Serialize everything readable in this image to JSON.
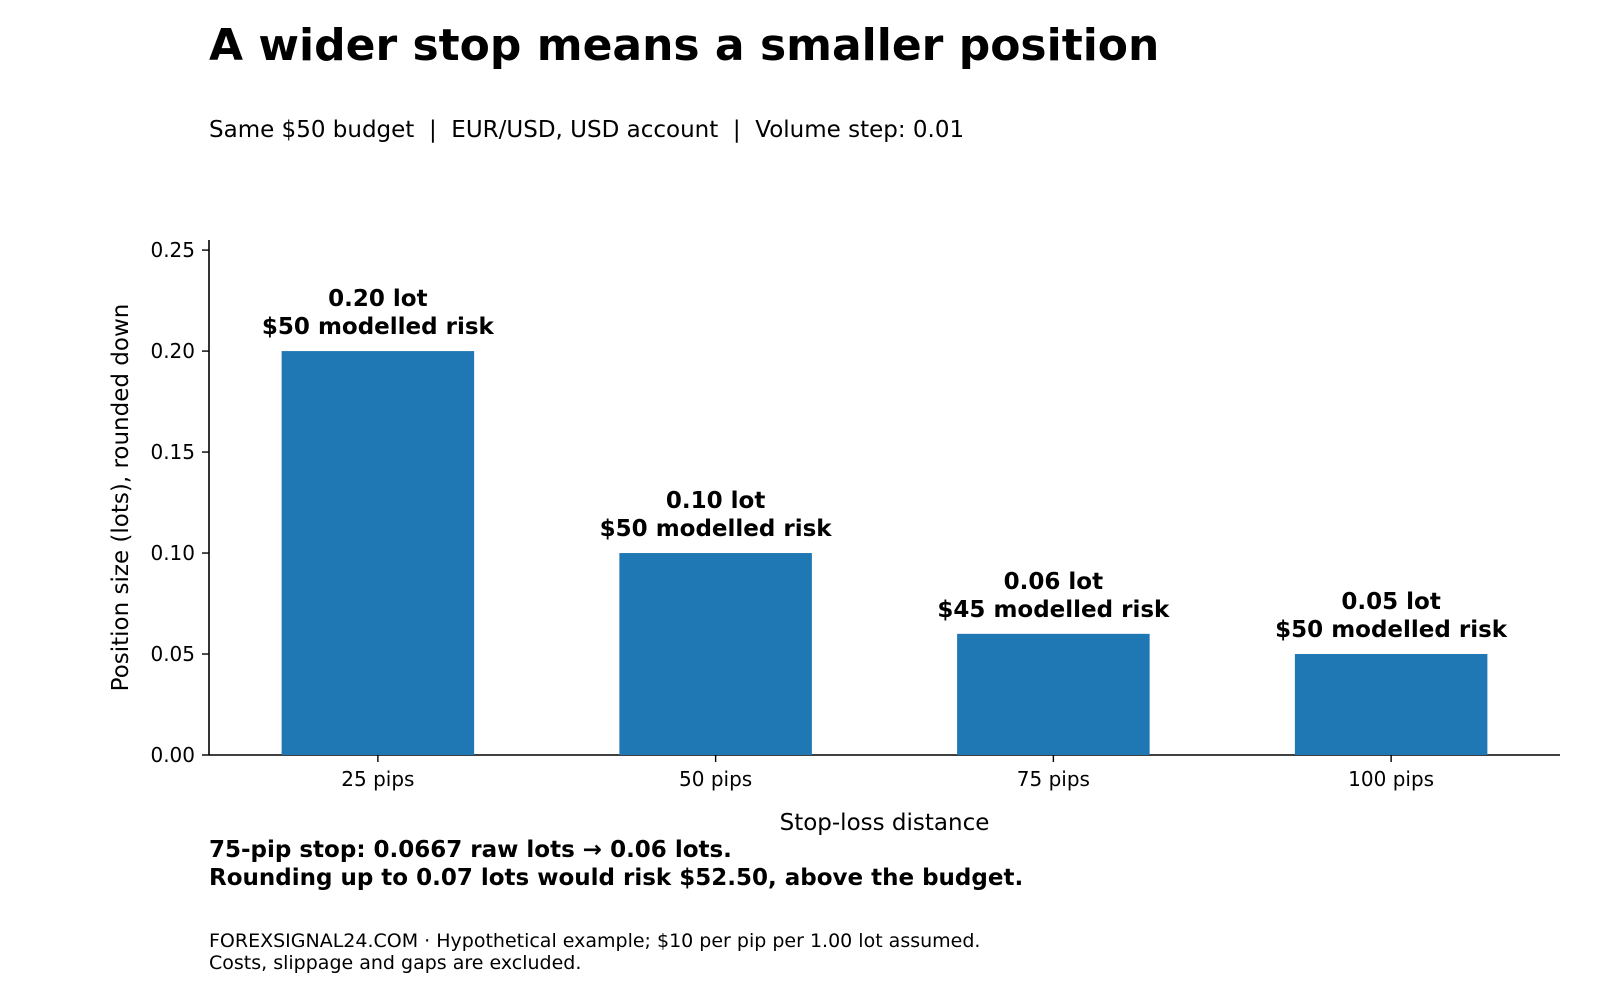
{
  "header": {
    "title": "A wider stop means a smaller position",
    "subtitle": "Same $50 budget  |  EUR/USD, USD account  |  Volume step: 0.01"
  },
  "chart_data": {
    "type": "bar",
    "categories": [
      "25 pips",
      "50 pips",
      "75 pips",
      "100 pips"
    ],
    "values": [
      0.2,
      0.1,
      0.06,
      0.05
    ],
    "data_labels": [
      [
        "0.20 lot",
        "$50 modelled risk"
      ],
      [
        "0.10 lot",
        "$50 modelled risk"
      ],
      [
        "0.06 lot",
        "$45 modelled risk"
      ],
      [
        "0.05 lot",
        "$50 modelled risk"
      ]
    ],
    "xlabel": "Stop-loss distance",
    "ylabel": "Position size (lots), rounded down",
    "ylim": [
      0,
      0.255
    ],
    "yticks": [
      "0.00",
      "0.05",
      "0.10",
      "0.15",
      "0.20",
      "0.25"
    ],
    "ytick_values": [
      0,
      0.05,
      0.1,
      0.15,
      0.2,
      0.25
    ],
    "bar_color": "#1f77b4",
    "grid": false,
    "legend": "none"
  },
  "note": {
    "line1": "75-pip stop: 0.0667 raw lots → 0.06 lots.",
    "line2": "Rounding up to 0.07 lots would risk $52.50, above the budget."
  },
  "footer": {
    "line1": "FOREXSIGNAL24.COM  ·  Hypothetical example; $10 per pip per 1.00 lot assumed.",
    "line2": "Costs, slippage and gaps are excluded."
  }
}
